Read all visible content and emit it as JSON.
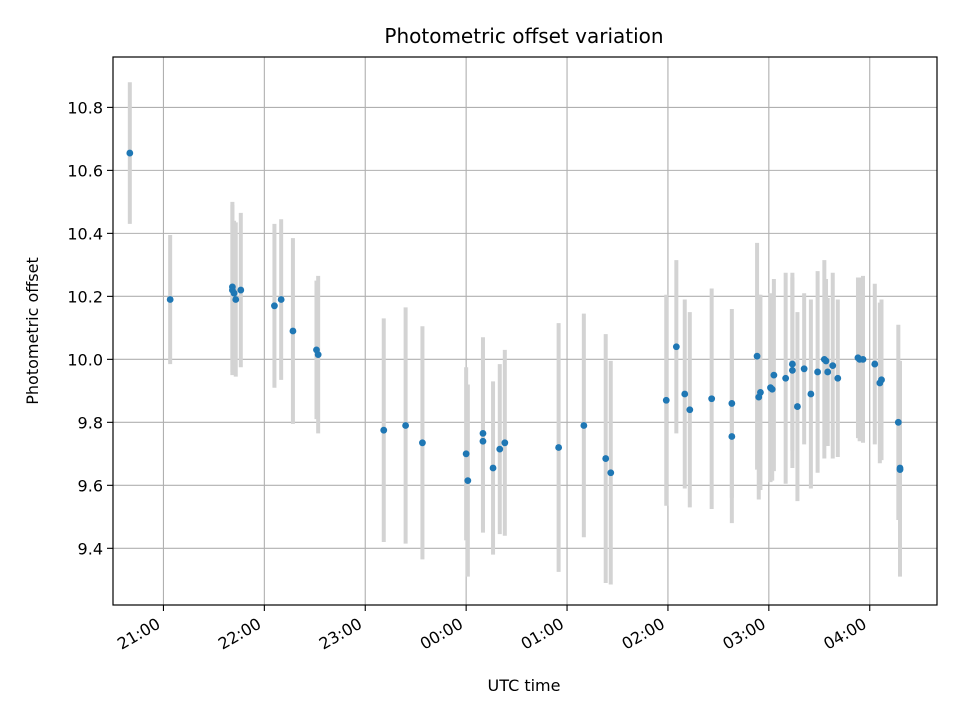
{
  "chart_data": {
    "type": "scatter",
    "title": "Photometric offset variation",
    "xlabel": "UTC time",
    "ylabel": "Photometric offset",
    "x_ticks": [
      "21:00",
      "22:00",
      "23:00",
      "00:00",
      "01:00",
      "02:00",
      "03:00",
      "04:00"
    ],
    "y_ticks": [
      "9.4",
      "9.6",
      "9.8",
      "10.0",
      "10.2",
      "10.4",
      "10.6",
      "10.8"
    ],
    "xlim": [
      "20:30",
      "04:40"
    ],
    "ylim": [
      9.22,
      10.96
    ],
    "grid": true,
    "colors": {
      "points": "#1f77b4",
      "errorbars": "#d3d3d3",
      "grid": "#b0b0b0"
    },
    "series": [
      {
        "x": [
          "20:40",
          "21:04",
          "21:41",
          "21:41",
          "21:42",
          "21:43",
          "21:46",
          "22:06",
          "22:10",
          "22:17",
          "22:31",
          "22:32",
          "23:11",
          "23:24",
          "23:34",
          "00:00",
          "00:01",
          "00:10",
          "00:10",
          "00:16",
          "00:20",
          "00:23",
          "00:55",
          "01:10",
          "01:23",
          "01:26",
          "01:59",
          "02:05",
          "02:10",
          "02:13",
          "02:26",
          "02:38",
          "02:38",
          "02:53",
          "02:54",
          "02:55",
          "03:01",
          "03:02",
          "03:03",
          "03:10",
          "03:14",
          "03:14",
          "03:17",
          "03:21",
          "03:25",
          "03:29",
          "03:33",
          "03:34",
          "03:35",
          "03:38",
          "03:41",
          "03:53",
          "03:54",
          "03:56",
          "04:03",
          "04:06",
          "04:07",
          "04:17",
          "04:18",
          "04:18"
        ],
        "y": [
          10.655,
          10.19,
          10.23,
          10.22,
          10.21,
          10.19,
          10.22,
          10.17,
          10.19,
          10.09,
          10.03,
          10.015,
          9.775,
          9.79,
          9.735,
          9.7,
          9.615,
          9.765,
          9.74,
          9.655,
          9.715,
          9.735,
          9.72,
          9.79,
          9.685,
          9.64,
          9.87,
          10.04,
          9.89,
          9.84,
          9.875,
          9.755,
          9.86,
          10.01,
          9.88,
          9.895,
          9.91,
          9.905,
          9.95,
          9.94,
          9.965,
          9.985,
          9.85,
          9.97,
          9.89,
          9.96,
          10.0,
          9.995,
          9.96,
          9.98,
          9.94,
          10.005,
          10.0,
          10.0,
          9.985,
          9.925,
          9.935,
          9.8,
          9.655,
          9.65
        ],
        "yerr": [
          0.225,
          0.205,
          0.27,
          0.27,
          0.23,
          0.245,
          0.245,
          0.26,
          0.255,
          0.295,
          0.22,
          0.25,
          0.355,
          0.375,
          0.37,
          0.275,
          0.305,
          0.305,
          0.29,
          0.275,
          0.27,
          0.295,
          0.395,
          0.355,
          0.395,
          0.355,
          0.335,
          0.275,
          0.3,
          0.31,
          0.35,
          0.275,
          0.3,
          0.36,
          0.325,
          0.31,
          0.3,
          0.29,
          0.305,
          0.335,
          0.31,
          0.275,
          0.3,
          0.24,
          0.3,
          0.32,
          0.315,
          0.26,
          0.235,
          0.295,
          0.25,
          0.255,
          0.26,
          0.265,
          0.255,
          0.255,
          0.255,
          0.31,
          0.34,
          0.34
        ]
      }
    ]
  }
}
